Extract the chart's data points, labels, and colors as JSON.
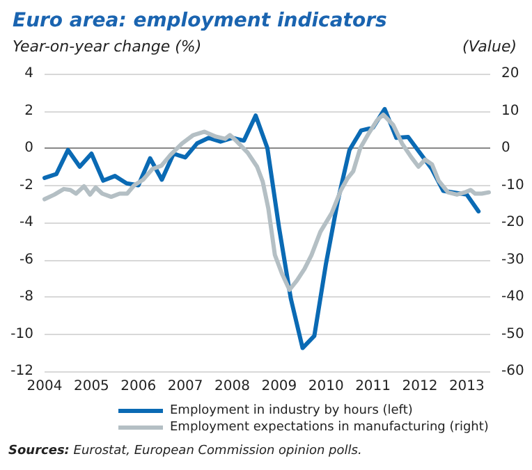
{
  "chart_data": {
    "type": "line",
    "title": "Euro area: employment indicators",
    "ylabel": "Year-on-year change (%)",
    "y2label": "(Value)",
    "xlim": [
      2004,
      2013.5
    ],
    "xticks": [
      2004,
      2005,
      2006,
      2007,
      2008,
      2009,
      2010,
      2011,
      2012,
      2013
    ],
    "ylim": [
      -12,
      4
    ],
    "yticks": [
      -12,
      -10,
      -8,
      -6,
      -4,
      -2,
      0,
      2,
      4
    ],
    "y2lim": [
      -60,
      20
    ],
    "y2ticks": [
      -60,
      -50,
      -40,
      -30,
      -20,
      -10,
      0,
      10,
      20
    ],
    "grid": "y",
    "legend": "bottom",
    "marker": "none",
    "line_style": "solid",
    "annotations": [
      "Sources: Eurostat, European Commission opinion polls."
    ],
    "series": [
      {
        "name": "Employment in industry by hours (left)",
        "color": "#0a6ab4",
        "x": [
          2004,
          2004.25,
          2004.5,
          2004.75,
          2005,
          2005.25,
          2005.5,
          2005.75,
          2006,
          2006.25,
          2006.5,
          2006.75,
          2007,
          2007.25,
          2007.5,
          2007.75,
          2008,
          2008.25,
          2008.5,
          2008.75,
          2009,
          2009.25,
          2009.5,
          2009.75,
          2010,
          2010.25,
          2010.5,
          2010.75,
          2011,
          2011.25,
          2011.5,
          2011.75,
          2012,
          2012.25,
          2012.5,
          2012.75,
          2013,
          2013.25
        ],
        "values": [
          -1.6,
          -1.4,
          -0.1,
          -1.0,
          -0.3,
          -1.75,
          -1.5,
          -1.9,
          -2.0,
          -0.55,
          -1.7,
          -0.3,
          -0.5,
          0.25,
          0.55,
          0.35,
          0.55,
          0.4,
          1.75,
          0,
          -4.3,
          -8.1,
          -10.75,
          -10.1,
          -6.2,
          -2.85,
          -0.1,
          0.95,
          1.1,
          2.1,
          0.55,
          0.6,
          -0.25,
          -1.1,
          -2.3,
          -2.4,
          -2.5,
          -3.4
        ]
      },
      {
        "name": "Employment expectations in manufacturing (right)",
        "color": "#b4bfc4",
        "axis": "y2",
        "x": [
          2004,
          2004.21,
          2004.41,
          2004.55,
          2004.67,
          2004.84,
          2004.97,
          2005.09,
          2005.23,
          2005.42,
          2005.6,
          2005.76,
          2005.91,
          2006.1,
          2006.3,
          2006.49,
          2006.68,
          2006.93,
          2007.17,
          2007.41,
          2007.65,
          2007.85,
          2007.95,
          2008.09,
          2008.33,
          2008.53,
          2008.65,
          2008.77,
          2008.91,
          2009.06,
          2009.22,
          2009.38,
          2009.54,
          2009.69,
          2009.88,
          2010.12,
          2010.32,
          2010.46,
          2010.58,
          2010.73,
          2010.9,
          2011.09,
          2011.22,
          2011.43,
          2011.62,
          2011.82,
          2011.97,
          2012.11,
          2012.26,
          2012.4,
          2012.6,
          2012.79,
          2012.96,
          2013.08,
          2013.18,
          2013.32,
          2013.47
        ],
        "values": [
          -13.75,
          -12.5,
          -11,
          -11.25,
          -12.25,
          -10.25,
          -12.5,
          -10.6,
          -12.25,
          -13.1,
          -12.25,
          -12.25,
          -10,
          -8.5,
          -5.6,
          -4.75,
          -1.9,
          1.25,
          3.5,
          4.4,
          3.1,
          2.5,
          3.5,
          1.9,
          -1.25,
          -5,
          -9,
          -16.25,
          -28.75,
          -33.75,
          -38.1,
          -35.6,
          -32.5,
          -28.75,
          -22.5,
          -17.5,
          -11.25,
          -8.1,
          -6.25,
          0,
          3.75,
          7.5,
          9,
          6.25,
          1.25,
          -2.5,
          -5,
          -3.1,
          -4.4,
          -8.75,
          -11.9,
          -12.5,
          -11.9,
          -11.25,
          -12.25,
          -12.25,
          -11.9
        ]
      }
    ]
  }
}
